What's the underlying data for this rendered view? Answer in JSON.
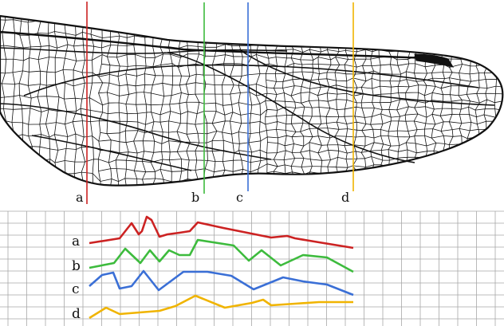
{
  "colors": {
    "a": "#cc2222",
    "b": "#3dbb3d",
    "c": "#3a6fd6",
    "d": "#f0b400",
    "vein": "#111111",
    "grid": "#a8a8a8"
  },
  "sections": [
    {
      "id": "a",
      "label": "a"
    },
    {
      "id": "b",
      "label": "b"
    },
    {
      "id": "c",
      "label": "c"
    },
    {
      "id": "d",
      "label": "d"
    }
  ],
  "profiles": [
    {
      "id": "a",
      "label": "a"
    },
    {
      "id": "b",
      "label": "b"
    },
    {
      "id": "c",
      "label": "c"
    },
    {
      "id": "d",
      "label": "d"
    }
  ]
}
